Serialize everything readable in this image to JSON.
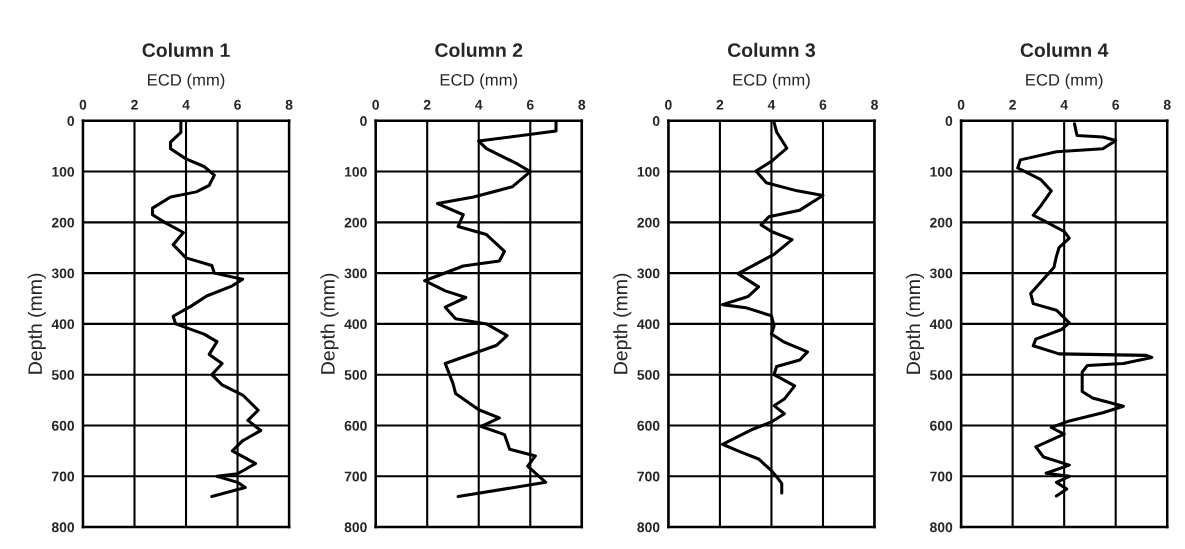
{
  "chart_data": [
    {
      "type": "line",
      "title": "Column 1",
      "xlabel": "ECD (mm)",
      "ylabel": "Depth (mm)",
      "xlim": [
        0,
        8
      ],
      "xticks": [
        0,
        2,
        4,
        6,
        8
      ],
      "ylim": [
        800,
        0
      ],
      "yticks": [
        0,
        100,
        200,
        300,
        400,
        500,
        600,
        700,
        800
      ],
      "grid": true,
      "line_style": "solid",
      "marker": "none",
      "series": [
        {
          "color": "#000000",
          "x": [
            3.8,
            3.8,
            3.4,
            3.4,
            4.0,
            4.7,
            5.1,
            4.9,
            4.4,
            3.4,
            2.7,
            2.7,
            3.2,
            3.9,
            3.5,
            4.0,
            5.0,
            5.1,
            6.2,
            5.8,
            4.8,
            4.2,
            3.5,
            3.6,
            4.7,
            5.2,
            4.9,
            5.4,
            5.0,
            5.4,
            6.2,
            6.8,
            6.4,
            6.9,
            6.2,
            5.8,
            6.7,
            6.0,
            5.2,
            6.0,
            6.3,
            5.0
          ],
          "values": [
            0,
            23,
            42,
            55,
            75,
            90,
            107,
            127,
            140,
            150,
            172,
            185,
            201,
            220,
            244,
            270,
            285,
            300,
            312,
            325,
            345,
            365,
            385,
            400,
            420,
            435,
            460,
            478,
            500,
            520,
            540,
            570,
            590,
            610,
            630,
            650,
            675,
            695,
            700,
            712,
            722,
            740
          ]
        }
      ]
    },
    {
      "type": "line",
      "title": "Column 2",
      "xlabel": "ECD (mm)",
      "ylabel": "Depth (mm)",
      "xlim": [
        0,
        8
      ],
      "xticks": [
        0,
        2,
        4,
        6,
        8
      ],
      "ylim": [
        800,
        0
      ],
      "yticks": [
        0,
        100,
        200,
        300,
        400,
        500,
        600,
        700,
        800
      ],
      "grid": true,
      "line_style": "solid",
      "marker": "none",
      "series": [
        {
          "color": "#000000",
          "x": [
            7.0,
            7.0,
            4.0,
            4.3,
            5.1,
            5.5,
            6.0,
            5.3,
            3.8,
            2.4,
            3.4,
            3.2,
            4.3,
            5.0,
            4.8,
            3.4,
            1.9,
            2.7,
            3.5,
            2.7,
            3.1,
            4.3,
            5.1,
            4.7,
            2.7,
            2.8,
            3.0,
            3.1,
            4.0,
            4.8,
            4.1,
            5.0,
            5.2,
            6.2,
            5.9,
            6.6,
            3.2
          ],
          "values": [
            0,
            20,
            40,
            55,
            75,
            85,
            100,
            130,
            150,
            163,
            185,
            208,
            224,
            257,
            276,
            286,
            315,
            335,
            348,
            367,
            390,
            400,
            423,
            442,
            478,
            491,
            517,
            537,
            569,
            585,
            602,
            618,
            647,
            660,
            680,
            712,
            740
          ]
        }
      ]
    },
    {
      "type": "line",
      "title": "Column 3",
      "xlabel": "ECD (mm)",
      "ylabel": "Depth (mm)",
      "xlim": [
        0,
        8
      ],
      "xticks": [
        0,
        2,
        4,
        6,
        8
      ],
      "ylim": [
        800,
        0
      ],
      "yticks": [
        0,
        100,
        200,
        300,
        400,
        500,
        600,
        700,
        800
      ],
      "grid": true,
      "line_style": "solid",
      "marker": "none",
      "series": [
        {
          "color": "#000000",
          "x": [
            4.1,
            4.2,
            4.6,
            4.0,
            3.4,
            3.8,
            5.0,
            6.0,
            5.1,
            3.9,
            3.6,
            4.0,
            4.8,
            4.1,
            2.7,
            3.5,
            3.1,
            2.1,
            3.0,
            4.0,
            4.1,
            4.0,
            4.5,
            5.4,
            5.1,
            4.2,
            4.1,
            4.9,
            4.5,
            4.1,
            4.5,
            4.0,
            3.2,
            2.1,
            2.7,
            3.5,
            4.0,
            4.2,
            4.4,
            4.4
          ],
          "values": [
            3,
            22,
            54,
            80,
            99,
            122,
            138,
            147,
            176,
            189,
            205,
            218,
            234,
            263,
            301,
            327,
            346,
            362,
            368,
            384,
            404,
            420,
            436,
            455,
            471,
            484,
            500,
            522,
            548,
            561,
            577,
            593,
            609,
            637,
            650,
            666,
            689,
            701,
            714,
            733
          ]
        }
      ]
    },
    {
      "type": "line",
      "title": "Column 4",
      "xlabel": "ECD (mm)",
      "ylabel": "Depth (mm)",
      "xlim": [
        0,
        8
      ],
      "xticks": [
        0,
        2,
        4,
        6,
        8
      ],
      "ylim": [
        800,
        0
      ],
      "yticks": [
        0,
        100,
        200,
        300,
        400,
        500,
        600,
        700,
        800
      ],
      "grid": true,
      "line_style": "solid",
      "marker": "none",
      "series": [
        {
          "color": "#000000",
          "x": [
            4.4,
            4.5,
            5.5,
            6.0,
            5.5,
            3.7,
            2.3,
            2.2,
            3.1,
            3.5,
            3.1,
            2.8,
            3.3,
            4.0,
            4.2,
            3.8,
            3.7,
            3.6,
            2.7,
            2.8,
            3.7,
            4.2,
            3.9,
            2.9,
            2.8,
            3.8,
            7.2,
            7.4,
            6.3,
            4.9,
            4.7,
            4.7,
            5.1,
            6.3,
            5.5,
            4.2,
            3.5,
            4.0,
            2.9,
            3.2,
            4.2,
            3.3,
            4.2,
            3.7,
            4.1,
            3.7
          ],
          "values": [
            6,
            29,
            32,
            39,
            55,
            61,
            77,
            93,
            116,
            138,
            167,
            186,
            199,
            218,
            231,
            250,
            267,
            289,
            340,
            360,
            373,
            398,
            411,
            430,
            443,
            459,
            462,
            466,
            478,
            482,
            495,
            533,
            546,
            562,
            575,
            591,
            604,
            617,
            642,
            662,
            678,
            694,
            700,
            712,
            725,
            739
          ]
        }
      ]
    }
  ]
}
